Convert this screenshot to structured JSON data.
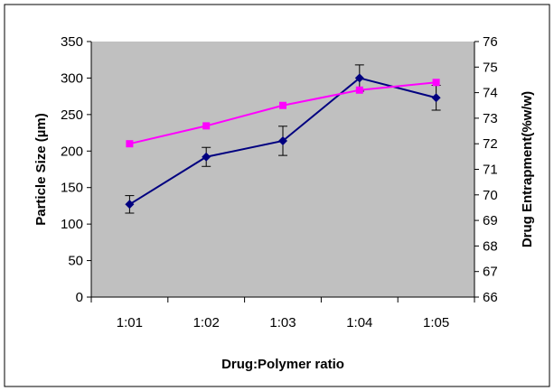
{
  "chart_data": {
    "type": "line",
    "title": "",
    "xlabel": "Drug:Polymer ratio",
    "ylabel": "Particle Size (µm)",
    "y2label": "Drug Entrapment(%w/w)",
    "categories": [
      "1:01",
      "1:02",
      "1:03",
      "1:04",
      "1:05"
    ],
    "ylim": [
      0,
      350
    ],
    "y_ticks": [
      "0",
      "50",
      "100",
      "150",
      "200",
      "250",
      "300",
      "350"
    ],
    "y2lim": [
      66,
      76
    ],
    "y2_ticks": [
      "66",
      "67",
      "68",
      "69",
      "70",
      "71",
      "72",
      "73",
      "74",
      "75",
      "76"
    ],
    "grid": false,
    "legend": "none",
    "plot_background": "#c0c0c0",
    "series": [
      {
        "axis": "left",
        "color": "#000080",
        "marker": "diamond",
        "values": [
          127,
          192,
          214,
          300,
          273
        ],
        "error": [
          12,
          13,
          20,
          18,
          17
        ]
      },
      {
        "axis": "right",
        "color": "#ff00ff",
        "marker": "square",
        "values": [
          72.0,
          72.7,
          73.5,
          74.1,
          74.4
        ]
      }
    ]
  }
}
